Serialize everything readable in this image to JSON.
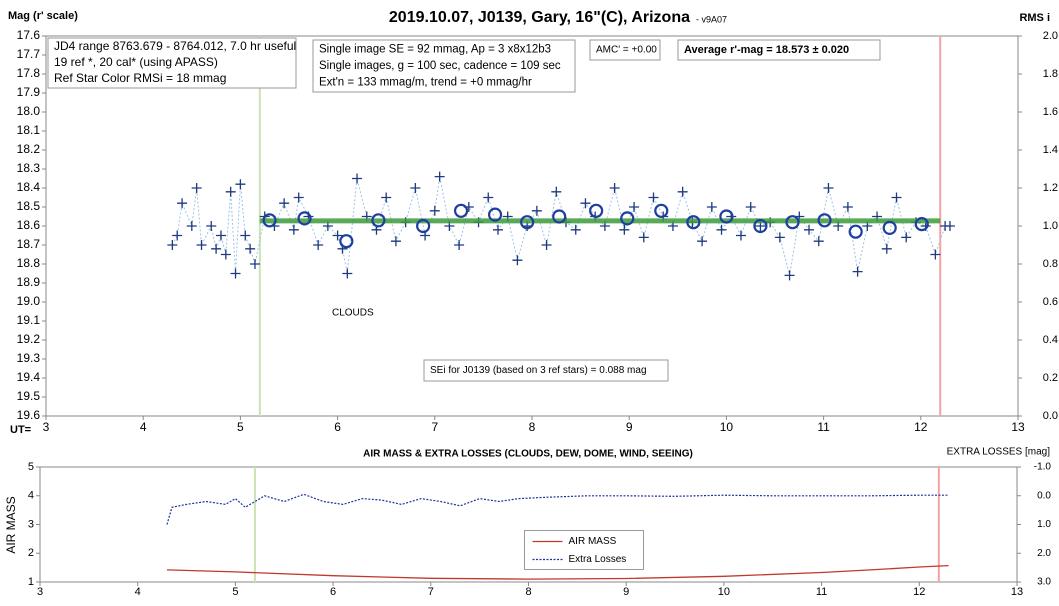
{
  "chart_data": [
    {
      "type": "scatter",
      "title": "2019.10.07, J0139, Gary, 16\"(C), Arizona",
      "subtitle": "- v9A07",
      "y_label": "Mag (r' scale)",
      "y2_label": "RMS i",
      "x_label": "UT=",
      "xlim": [
        3,
        13
      ],
      "xticks": [
        3,
        4,
        5,
        6,
        7,
        8,
        9,
        10,
        11,
        12,
        13
      ],
      "ylim": [
        17.6,
        19.6
      ],
      "y_inverted": true,
      "yticks": [
        17.6,
        17.7,
        17.8,
        17.9,
        {
          "value": 18,
          "label": "18.0"
        },
        18.1,
        18.2,
        18.3,
        18.4,
        18.5,
        18.6,
        18.7,
        18.8,
        18.9,
        {
          "value": 19,
          "label": "19.0"
        },
        19.1,
        19.2,
        19.3,
        19.4,
        19.5,
        19.6
      ],
      "y2lim": [
        0,
        2
      ],
      "y2ticks": [
        {
          "value": 0,
          "label": "0.0"
        },
        0.2,
        0.4,
        0.6,
        0.8,
        {
          "value": 1,
          "label": "1.0"
        },
        1.2,
        1.4,
        1.6,
        1.8,
        {
          "value": 2,
          "label": "2.0"
        }
      ],
      "grid": false,
      "vlines": [
        {
          "x": 5.2,
          "color": "#c9e3b2"
        },
        {
          "x": 12.2,
          "color": "#f3a3a3"
        }
      ],
      "series": [
        {
          "marker": "plus",
          "color": "#1f3a80",
          "line_color": "#9cc3e6",
          "x": [
            4.3,
            4.35,
            4.4,
            4.5,
            4.55,
            4.6,
            4.7,
            4.75,
            4.8,
            4.85,
            4.9,
            4.95,
            5.0,
            5.05,
            5.1,
            5.15,
            5.25,
            5.35,
            5.45,
            5.55,
            5.6,
            5.7,
            5.8,
            5.9,
            6.0,
            6.05,
            6.1,
            6.2,
            6.3,
            6.4,
            6.5,
            6.6,
            6.7,
            6.8,
            6.9,
            7.0,
            7.05,
            7.15,
            7.25,
            7.35,
            7.45,
            7.55,
            7.65,
            7.75,
            7.85,
            7.95,
            8.05,
            8.15,
            8.25,
            8.35,
            8.45,
            8.55,
            8.65,
            8.75,
            8.85,
            8.95,
            9.05,
            9.15,
            9.25,
            9.35,
            9.45,
            9.55,
            9.65,
            9.75,
            9.85,
            9.95,
            10.05,
            10.15,
            10.25,
            10.35,
            10.45,
            10.55,
            10.65,
            10.75,
            10.85,
            10.95,
            11.05,
            11.15,
            11.25,
            11.35,
            11.45,
            11.55,
            11.65,
            11.75,
            11.85,
            11.95,
            12.05,
            12.15,
            12.25,
            12.3
          ],
          "values": [
            18.7,
            18.65,
            18.48,
            18.6,
            18.4,
            18.7,
            18.6,
            18.72,
            18.65,
            18.75,
            18.42,
            18.85,
            18.38,
            18.65,
            18.72,
            18.8,
            18.55,
            18.6,
            18.48,
            18.62,
            18.45,
            18.55,
            18.7,
            18.6,
            18.65,
            18.72,
            18.85,
            18.35,
            18.55,
            18.62,
            18.45,
            18.68,
            18.58,
            18.4,
            18.65,
            18.52,
            18.34,
            18.6,
            18.7,
            18.5,
            18.58,
            18.45,
            18.62,
            18.55,
            18.78,
            18.6,
            18.52,
            18.7,
            18.42,
            18.58,
            18.62,
            18.48,
            18.55,
            18.6,
            18.4,
            18.62,
            18.5,
            18.66,
            18.45,
            18.55,
            18.6,
            18.42,
            18.58,
            18.68,
            18.5,
            18.62,
            18.55,
            18.65,
            18.5,
            18.6,
            18.58,
            18.66,
            18.86,
            18.55,
            18.62,
            18.68,
            18.4,
            18.6,
            18.5,
            18.84,
            18.6,
            18.55,
            18.72,
            18.45,
            18.66,
            18.58,
            18.6,
            18.75,
            18.6,
            18.6
          ]
        },
        {
          "marker": "trend",
          "color": "#3c9a3c",
          "x": [
            5.2,
            12.2
          ],
          "values": [
            18.573,
            18.573
          ]
        },
        {
          "marker": "circle",
          "color": "#1f3fa0",
          "x": [
            5.3,
            5.66,
            6.09,
            6.42,
            6.88,
            7.27,
            7.62,
            7.95,
            8.28,
            8.66,
            8.98,
            9.33,
            9.66,
            10.0,
            10.35,
            10.68,
            11.01,
            11.33,
            11.68,
            12.01
          ],
          "values": [
            18.57,
            18.56,
            18.68,
            18.57,
            18.6,
            18.52,
            18.54,
            18.58,
            18.55,
            18.52,
            18.56,
            18.52,
            18.58,
            18.55,
            18.6,
            18.58,
            18.57,
            18.63,
            18.61,
            18.59
          ]
        }
      ],
      "annotations": [
        [
          "JD4 range 8763.679 - 8764.012, 7.0 hr useful",
          "19 ref *, 20 cal* (using APASS)",
          "Ref Star Color RMSi = 18 mmag"
        ],
        [
          "Single image SE = 92 mmag, Ap = 3 x8x12b3",
          "Single images, g = 100 sec, cadence = 109 sec",
          "Ext'n = 133 mmag/m, trend = +0 mmag/hr"
        ],
        [
          "AMC' = +0.00"
        ],
        [
          "Average r'-mag =  18.573 ± 0.020"
        ],
        [
          "CLOUDS"
        ],
        [
          "SEi for J0139 (based on 3 ref stars) = 0.088 mag"
        ]
      ]
    },
    {
      "type": "line",
      "title": "AIR MASS & EXTRA LOSSES (CLOUDS, DEW, DOME, WIND, SEEING)",
      "y_label": "AIR MASS",
      "y2_label": "EXTRA LOSSES [mag]",
      "xlim": [
        3,
        13
      ],
      "xticks": [
        3,
        4,
        5,
        6,
        7,
        8,
        9,
        10,
        11,
        12,
        13
      ],
      "ylim": [
        1,
        5
      ],
      "yticks": [
        1,
        2,
        3,
        4,
        5
      ],
      "y2lim": [
        -1,
        3
      ],
      "y2_inverted": true,
      "y2ticks": [
        {
          "value": -1,
          "label": "-1.0"
        },
        {
          "value": 0,
          "label": "0.0"
        },
        {
          "value": 1,
          "label": "1.0"
        },
        {
          "value": 2,
          "label": "2.0"
        },
        {
          "value": 3,
          "label": "3.0"
        }
      ],
      "legend": "center",
      "vlines": [
        {
          "x": 5.2,
          "color": "#c9e3b2"
        },
        {
          "x": 12.2,
          "color": "#f3a3a3"
        }
      ],
      "series": [
        {
          "name": "AIR MASS",
          "color": "#c0392b",
          "dash": false,
          "x": [
            4.3,
            5,
            6,
            7,
            8,
            9,
            10,
            11,
            11.5,
            12,
            12.3
          ],
          "values": [
            1.42,
            1.35,
            1.22,
            1.13,
            1.1,
            1.12,
            1.2,
            1.33,
            1.42,
            1.52,
            1.57
          ]
        },
        {
          "name": "Extra Losses",
          "color": "#1f2fa0",
          "dash": true,
          "axis": "y2",
          "x": [
            4.3,
            4.35,
            4.5,
            4.7,
            4.9,
            5.0,
            5.1,
            5.3,
            5.5,
            5.7,
            5.9,
            6.1,
            6.3,
            6.5,
            6.7,
            6.9,
            7.1,
            7.3,
            7.5,
            7.7,
            7.9,
            8.2,
            8.6,
            9,
            9.5,
            10,
            10.5,
            11,
            11.5,
            12,
            12.3
          ],
          "values": [
            1.0,
            0.4,
            0.3,
            0.2,
            0.3,
            0.1,
            0.4,
            0.0,
            0.2,
            -0.05,
            0.2,
            0.3,
            0.1,
            0.15,
            0.3,
            0.1,
            0.2,
            0.35,
            0.1,
            0.2,
            0.1,
            0.05,
            0.0,
            0.0,
            0.02,
            -0.02,
            0.0,
            0.0,
            0.0,
            -0.02,
            -0.02
          ]
        }
      ]
    }
  ]
}
